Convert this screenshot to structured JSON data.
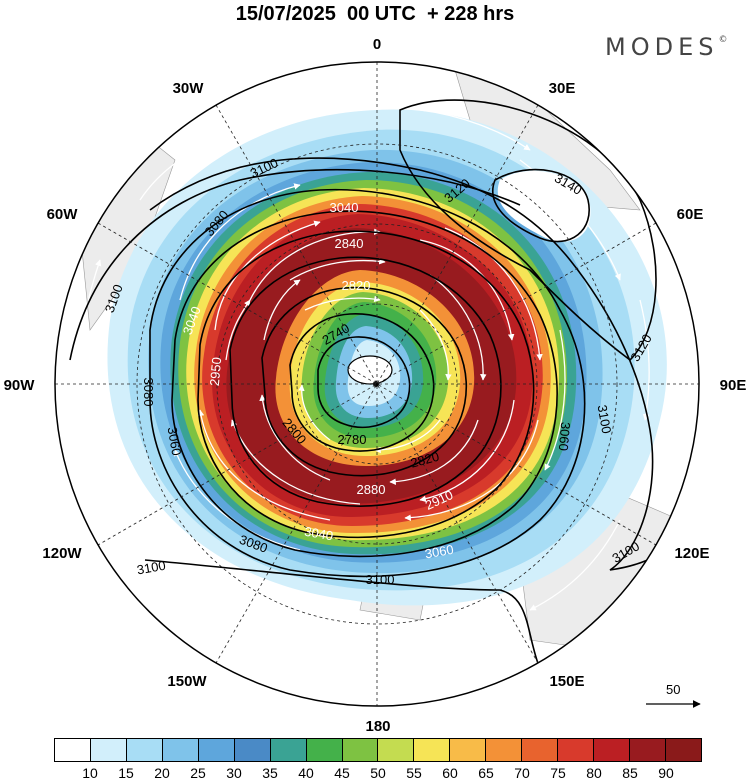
{
  "title": "15/07/2025  00 UTC  + 228 hrs",
  "brand": "MODES",
  "brand_mark": "©",
  "lon_labels": {
    "n": "0",
    "ne1": "30E",
    "ne2": "60E",
    "e": "90E",
    "se1": "120E",
    "se2": "150E",
    "s": "180",
    "sw1": "150W",
    "sw2": "120W",
    "w": "90W",
    "nw1": "60W",
    "nw2": "30W"
  },
  "contour_labels": {
    "c3140": "3140",
    "c3120a": "3120",
    "c3120b": "3120",
    "c3100a": "3100",
    "c3100b": "3100",
    "c3100c": "3100",
    "c3100d": "3100",
    "c3100e": "3100",
    "c3100f": "3100",
    "c3080a": "3080",
    "c3080b": "3080",
    "c3080c": "3080",
    "c3060a": "3060",
    "c3060b": "3060",
    "c3060c": "3060",
    "c3040a": "3040",
    "c3040b": "3040",
    "c3040c": "3040",
    "c2880": "2880",
    "c2840": "2840",
    "c2820a": "2820",
    "c2820b": "2820",
    "c2800": "2800",
    "c2780": "2780",
    "c2740": "2740",
    "c2910": "2910",
    "c2950": "2950"
  },
  "reference_vector": "50",
  "legend": {
    "labels": [
      "10",
      "15",
      "20",
      "25",
      "30",
      "35",
      "40",
      "45",
      "50",
      "55",
      "60",
      "65",
      "70",
      "75",
      "80",
      "85",
      "90"
    ],
    "colors": [
      "#ffffff",
      "#d2effb",
      "#a8ddf5",
      "#7fc3ea",
      "#5ea6dc",
      "#4a8ac6",
      "#3aa394",
      "#44b14a",
      "#7ec242",
      "#c4dc50",
      "#f6e456",
      "#f8bb48",
      "#f39137",
      "#e8632e",
      "#d83a2c",
      "#bb1f23",
      "#981b1f",
      "#8a1a1a"
    ]
  }
}
